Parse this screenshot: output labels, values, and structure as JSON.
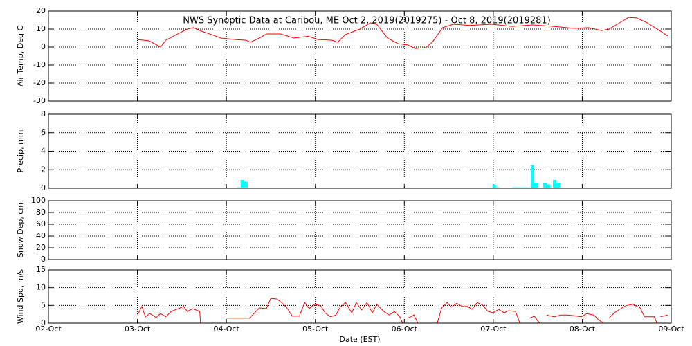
{
  "chart_data": [
    {
      "type": "line",
      "title": "NWS Synoptic Data at Caribou, ME   Oct  2, 2019(2019275) - Oct  8, 2019(2019281)",
      "ylabel": "Air Temp, Deg C",
      "color": "#ff0000",
      "xlim": [
        0,
        7
      ],
      "ylim": [
        -30,
        20
      ],
      "yticks": [
        -30,
        -20,
        -10,
        0,
        10,
        20
      ],
      "grid": true,
      "x": [
        1.0,
        1.13,
        1.26,
        1.32,
        1.44,
        1.56,
        1.63,
        1.71,
        1.83,
        1.94,
        2.1,
        2.22,
        2.27,
        2.37,
        2.45,
        2.61,
        2.76,
        2.92,
        3.03,
        3.19,
        3.25,
        3.34,
        3.5,
        3.62,
        3.69,
        3.81,
        3.93,
        4.04,
        4.12,
        4.24,
        4.32,
        4.43,
        4.55,
        4.74,
        4.98,
        5.21,
        5.44,
        5.68,
        5.91,
        6.07,
        6.22,
        6.3,
        6.38,
        6.52,
        6.61,
        6.73,
        6.88,
        6.96
      ],
      "values": [
        4.2,
        3.5,
        0,
        3.8,
        7,
        10,
        10.8,
        9,
        7,
        5,
        4.2,
        3.8,
        2.7,
        5,
        7.3,
        7.3,
        5,
        6,
        4.2,
        3.8,
        2.7,
        7,
        10,
        13.5,
        12.7,
        5,
        1.9,
        1.2,
        -0.8,
        -0.4,
        3,
        10.8,
        12.7,
        12,
        12.7,
        11.5,
        12.3,
        11.5,
        10.4,
        10.8,
        9.2,
        10,
        12.3,
        16.5,
        16.2,
        13.5,
        8.8,
        6.2
      ]
    },
    {
      "type": "bar",
      "ylabel": "Precip, mm",
      "color": "#00ffff",
      "xlim": [
        0,
        7
      ],
      "ylim": [
        0,
        8
      ],
      "yticks": [
        0,
        2,
        4,
        6,
        8
      ],
      "grid": true,
      "x": [
        2.14,
        2.18,
        2.22,
        5.01,
        5.05,
        5.23,
        5.27,
        5.31,
        5.35,
        5.39,
        5.44,
        5.48,
        5.58,
        5.62,
        5.69,
        5.73
      ],
      "values": [
        0.1,
        0.9,
        0.7,
        0.4,
        0.1,
        0.1,
        0.1,
        0.1,
        0.1,
        0.1,
        2.5,
        0.6,
        0.6,
        0.4,
        0.9,
        0.6
      ]
    },
    {
      "type": "line",
      "ylabel": "Snow Dep, cm",
      "color": "#ff0000",
      "xlim": [
        0,
        7
      ],
      "ylim": [
        0,
        100
      ],
      "yticks": [
        0,
        20,
        40,
        60,
        80,
        100
      ],
      "grid": true
    },
    {
      "type": "line",
      "ylabel": "Wind Spd, m/s",
      "xlabel": "Date (EST)",
      "color": "#ff0000",
      "xlim": [
        0,
        7
      ],
      "ylim": [
        0,
        15
      ],
      "yticks": [
        0,
        5,
        10,
        15
      ],
      "grid": true,
      "xticks": [
        {
          "value": 0,
          "label": "02-Oct"
        },
        {
          "value": 1,
          "label": "03-Oct"
        },
        {
          "value": 2,
          "label": "04-Oct"
        },
        {
          "value": 3,
          "label": "05-Oct"
        },
        {
          "value": 4,
          "label": "06-Oct"
        },
        {
          "value": 5,
          "label": "07-Oct"
        },
        {
          "value": 6,
          "label": "08-Oct"
        },
        {
          "value": 7,
          "label": "09-Oct"
        }
      ],
      "x": [
        1.0,
        1.05,
        1.09,
        1.14,
        1.21,
        1.26,
        1.32,
        1.38,
        1.46,
        1.52,
        1.56,
        1.62,
        1.7,
        1.71,
        1.85,
        2.0,
        2.14,
        2.26,
        2.37,
        2.45,
        2.5,
        2.57,
        2.62,
        2.68,
        2.74,
        2.82,
        2.88,
        2.93,
        2.99,
        3.06,
        3.11,
        3.17,
        3.23,
        3.28,
        3.34,
        3.41,
        3.46,
        3.52,
        3.58,
        3.64,
        3.69,
        3.77,
        3.83,
        3.89,
        3.95,
        3.98,
        4.01,
        4.04,
        4.11,
        4.15,
        4.26,
        4.37,
        4.42,
        4.48,
        4.53,
        4.59,
        4.65,
        4.71,
        4.76,
        4.82,
        4.88,
        4.94,
        5.0,
        5.06,
        5.12,
        5.17,
        5.25,
        5.3,
        5.35,
        5.41,
        5.46,
        5.52,
        5.56,
        5.6,
        5.68,
        5.76,
        5.83,
        5.91,
        5.99,
        6.05,
        6.13,
        6.18,
        6.24,
        6.27,
        6.3,
        6.36,
        6.42,
        6.49,
        6.57,
        6.65,
        6.7,
        6.81,
        6.84,
        6.86,
        6.88,
        6.96
      ],
      "values": [
        2.3,
        4.7,
        1.8,
        2.7,
        1.6,
        2.7,
        1.8,
        3.3,
        4.1,
        4.7,
        3.3,
        4.1,
        3.3,
        0,
        null,
        1.4,
        1.4,
        1.4,
        4.3,
        4.1,
        7,
        6.8,
        5.8,
        4.3,
        2,
        2,
        5.8,
        4.1,
        5.3,
        4.9,
        2.9,
        1.8,
        2.3,
        4.5,
        5.8,
        2.9,
        5.8,
        3.7,
        5.8,
        2.9,
        5.3,
        3.3,
        2.3,
        3.3,
        1.8,
        0,
        null,
        1.4,
        2.3,
        0,
        null,
        0,
        4.3,
        5.8,
        4.5,
        5.6,
        4.7,
        4.7,
        3.9,
        5.8,
        5.1,
        3.3,
        2.9,
        3.9,
        2.9,
        3.5,
        3.3,
        0,
        null,
        1.4,
        2,
        0,
        null,
        2.3,
        1.8,
        2.3,
        2.3,
        2.1,
        1.8,
        2.7,
        2.3,
        1,
        0,
        null,
        1.4,
        2.9,
        3.9,
        4.9,
        5.3,
        4.3,
        1.8,
        1.8,
        0,
        null,
        1.8,
        2.3
      ]
    }
  ]
}
